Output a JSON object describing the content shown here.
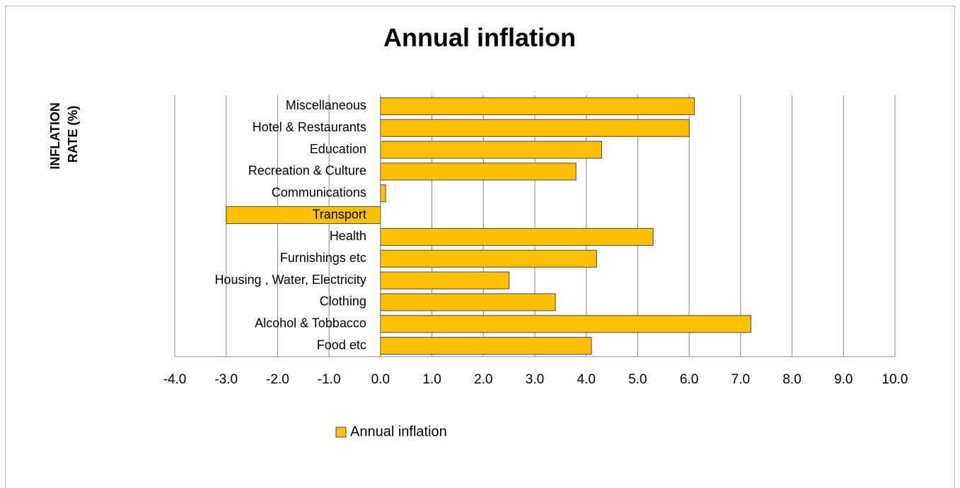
{
  "chart_data": {
    "type": "hbar",
    "title": "Annual inflation",
    "y_label": [
      "INFLATION",
      "RATE (%)"
    ],
    "categories": [
      "Miscellaneous",
      "Hotel & Restaurants",
      "Education",
      "Recreation & Culture",
      "Communications",
      "Transport",
      "Health",
      "Furnishings etc",
      "Housing , Water, Electricity",
      "Clothing",
      "Alcohol & Tobbacco",
      "Food etc"
    ],
    "series": [
      {
        "name": "Annual inflation",
        "color": "#ffc000",
        "values": [
          6.1,
          6.0,
          4.3,
          3.8,
          0.1,
          -3.0,
          5.3,
          4.2,
          2.5,
          3.4,
          7.2,
          4.1
        ]
      }
    ],
    "xlim": [
      -4,
      10
    ],
    "xticks": [
      {
        "value": -4,
        "label": "-4.0"
      },
      {
        "value": -3,
        "label": "-3.0"
      },
      {
        "value": -2,
        "label": "-2.0"
      },
      {
        "value": -1,
        "label": "-1.0"
      },
      {
        "value": 0,
        "label": "0.0"
      },
      {
        "value": 1,
        "label": "1.0"
      },
      {
        "value": 2,
        "label": "2.0"
      },
      {
        "value": 3,
        "label": "3.0"
      },
      {
        "value": 4,
        "label": "4.0"
      },
      {
        "value": 5,
        "label": "5.0"
      },
      {
        "value": 6,
        "label": "6.0"
      },
      {
        "value": 7,
        "label": "7.0"
      },
      {
        "value": 8,
        "label": "8.0"
      },
      {
        "value": 9,
        "label": "9.0"
      },
      {
        "value": 10,
        "label": "10.0"
      }
    ],
    "grid": true,
    "legend": "bottom"
  }
}
